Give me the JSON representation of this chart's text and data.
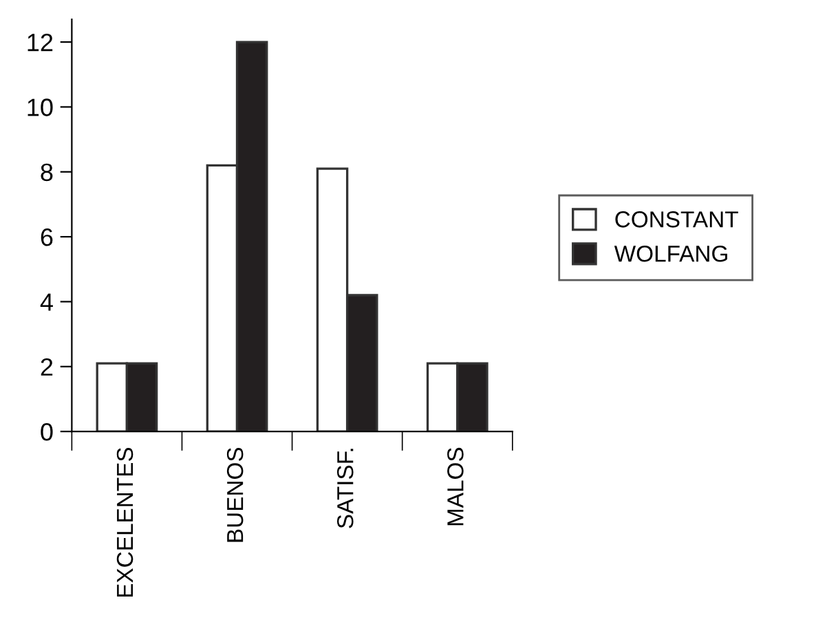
{
  "chart_data": {
    "type": "bar",
    "categories": [
      "EXCELENTES",
      "BUENOS",
      "SATISF.",
      "MALOS"
    ],
    "series": [
      {
        "name": "CONSTANT",
        "color": "#ffffff",
        "values": [
          2.1,
          8.2,
          8.1,
          2.1
        ]
      },
      {
        "name": "WOLFANG",
        "color": "#231f20",
        "values": [
          2.1,
          12,
          4.2,
          2.1
        ]
      }
    ],
    "ylim": [
      0,
      12.7
    ],
    "yticks": [
      0,
      2,
      4,
      6,
      8,
      10,
      12
    ],
    "grid": false,
    "legend": "right"
  }
}
